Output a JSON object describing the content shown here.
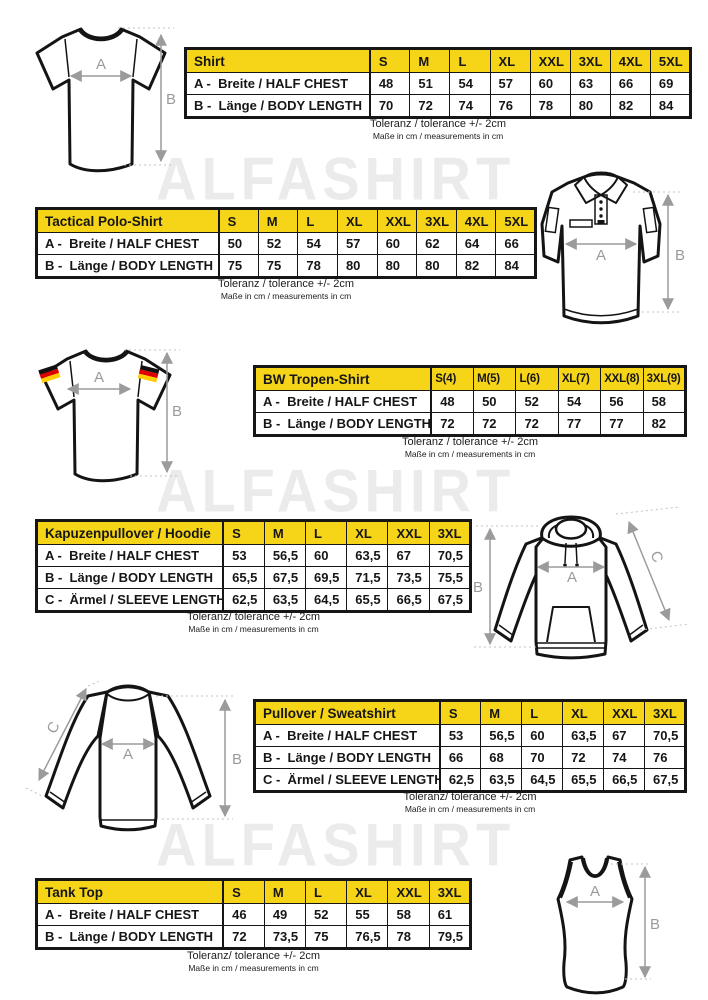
{
  "watermark": {
    "text": "ALFASHIRT"
  },
  "colors": {
    "header_yellow": "#F6D417",
    "table_border": "#161616",
    "arrow_gray": "#9B9B9B",
    "watermark_gray": "#EBEBEB",
    "flag_black": "#111111",
    "flag_red": "#DD0000",
    "flag_gold": "#FFCE00"
  },
  "sections": [
    {
      "title": "Shirt",
      "sizes": [
        "S",
        "M",
        "L",
        "XL",
        "XXL",
        "3XL",
        "4XL",
        "5XL"
      ],
      "rows": [
        {
          "label": "A -  Breite / HALF CHEST",
          "values": [
            "48",
            "51",
            "54",
            "57",
            "60",
            "63",
            "66",
            "69"
          ]
        },
        {
          "label": "B -  Länge / BODY LENGTH",
          "values": [
            "70",
            "72",
            "74",
            "76",
            "78",
            "80",
            "82",
            "84"
          ]
        }
      ],
      "tolerance": "Toleranz / tolerance +/- 2cm",
      "note": "Maße in cm / measurements in cm",
      "diagram": {
        "type": "t-shirt",
        "labels": {
          "a": "A",
          "b": "B"
        }
      }
    },
    {
      "title": "Tactical Polo-Shirt",
      "sizes": [
        "S",
        "M",
        "L",
        "XL",
        "XXL",
        "3XL",
        "4XL",
        "5XL"
      ],
      "rows": [
        {
          "label": "A -  Breite / HALF CHEST",
          "values": [
            "50",
            "52",
            "54",
            "57",
            "60",
            "62",
            "64",
            "66"
          ]
        },
        {
          "label": "B -  Länge / BODY LENGTH",
          "values": [
            "75",
            "75",
            "78",
            "80",
            "80",
            "80",
            "82",
            "84"
          ]
        }
      ],
      "tolerance": "Toleranz / tolerance +/- 2cm",
      "note": "Maße in cm / measurements in cm",
      "diagram": {
        "type": "polo-shirt",
        "labels": {
          "a": "A",
          "b": "B"
        }
      }
    },
    {
      "title": "BW Tropen-Shirt",
      "sizes": [
        "S(4)",
        "M(5)",
        "L(6)",
        "XL(7)",
        "XXL(8)",
        "3XL(9)"
      ],
      "rows": [
        {
          "label": "A -  Breite / HALF CHEST",
          "values": [
            "48",
            "50",
            "52",
            "54",
            "56",
            "58"
          ]
        },
        {
          "label": "B -  Länge / BODY LENGTH",
          "values": [
            "72",
            "72",
            "72",
            "77",
            "77",
            "82"
          ]
        }
      ],
      "tolerance": "Toleranz / tolerance +/- 2cm",
      "note": "Maße in cm / measurements in cm",
      "diagram": {
        "type": "t-shirt-flags",
        "labels": {
          "a": "A",
          "b": "B"
        }
      }
    },
    {
      "title": "Kapuzenpullover / Hoodie",
      "sizes": [
        "S",
        "M",
        "L",
        "XL",
        "XXL",
        "3XL"
      ],
      "rows": [
        {
          "label": "A -  Breite / HALF CHEST",
          "values": [
            "53",
            "56,5",
            "60",
            "63,5",
            "67",
            "70,5"
          ]
        },
        {
          "label": "B -  Länge / BODY LENGTH",
          "values": [
            "65,5",
            "67,5",
            "69,5",
            "71,5",
            "73,5",
            "75,5"
          ]
        },
        {
          "label": "C -  Ärmel / SLEEVE LENGTH",
          "values": [
            "62,5",
            "63,5",
            "64,5",
            "65,5",
            "66,5",
            "67,5"
          ]
        }
      ],
      "tolerance": "Toleranz/ tolerance +/- 2cm",
      "note": "Maße in cm / measurements in cm",
      "diagram": {
        "type": "hoodie",
        "labels": {
          "a": "A",
          "b": "B",
          "c": "C"
        }
      }
    },
    {
      "title": "Pullover / Sweatshirt",
      "sizes": [
        "S",
        "M",
        "L",
        "XL",
        "XXL",
        "3XL"
      ],
      "rows": [
        {
          "label": "A -  Breite / HALF CHEST",
          "values": [
            "53",
            "56,5",
            "60",
            "63,5",
            "67",
            "70,5"
          ]
        },
        {
          "label": "B -  Länge / BODY LENGTH",
          "values": [
            "66",
            "68",
            "70",
            "72",
            "74",
            "76"
          ]
        },
        {
          "label": "C -  Ärmel / SLEEVE LENGTH",
          "values": [
            "62,5",
            "63,5",
            "64,5",
            "65,5",
            "66,5",
            "67,5"
          ]
        }
      ],
      "tolerance": "Toleranz/ tolerance +/- 2cm",
      "note": "Maße in cm / measurements in cm",
      "diagram": {
        "type": "sweatshirt",
        "labels": {
          "a": "A",
          "b": "B",
          "c": "C"
        }
      }
    },
    {
      "title": "Tank Top",
      "sizes": [
        "S",
        "M",
        "L",
        "XL",
        "XXL",
        "3XL"
      ],
      "rows": [
        {
          "label": "A -  Breite / HALF CHEST",
          "values": [
            "46",
            "49",
            "52",
            "55",
            "58",
            "61"
          ]
        },
        {
          "label": "B -  Länge / BODY LENGTH",
          "values": [
            "72",
            "73,5",
            "75",
            "76,5",
            "78",
            "79,5"
          ]
        }
      ],
      "tolerance": "Toleranz/ tolerance +/- 2cm",
      "note": "Maße in cm / measurements in cm",
      "diagram": {
        "type": "tank-top",
        "labels": {
          "a": "A",
          "b": "B"
        }
      }
    }
  ]
}
